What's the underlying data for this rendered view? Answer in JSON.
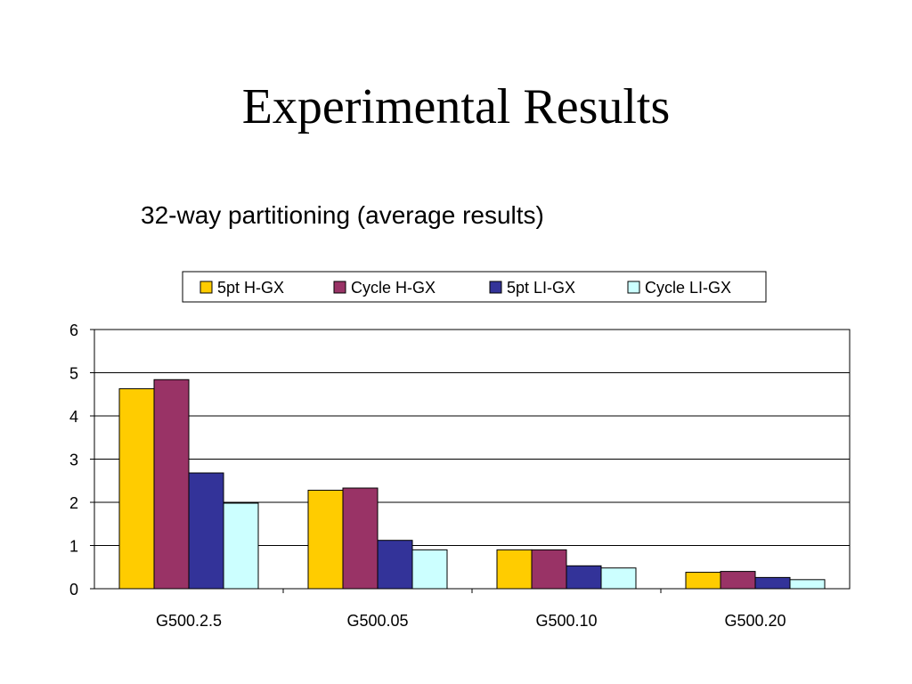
{
  "slide": {
    "title": "Experimental Results",
    "subtitle": "32-way partitioning (average results)"
  },
  "chart_data": {
    "type": "bar",
    "title": "",
    "xlabel": "",
    "ylabel": "",
    "categories": [
      "G500.2.5",
      "G500.05",
      "G500.10",
      "G500.20"
    ],
    "series": [
      {
        "name": "5pt H-GX",
        "color": "#FFCC00",
        "values": [
          4.63,
          2.28,
          0.9,
          0.38
        ]
      },
      {
        "name": "Cycle H-GX",
        "color": "#993366",
        "values": [
          4.84,
          2.33,
          0.9,
          0.4
        ]
      },
      {
        "name": "5pt LI-GX",
        "color": "#333399",
        "values": [
          2.68,
          1.12,
          0.53,
          0.26
        ]
      },
      {
        "name": "Cycle LI-GX",
        "color": "#CCFFFF",
        "values": [
          1.98,
          0.9,
          0.48,
          0.21
        ]
      }
    ],
    "ylim": [
      0,
      6
    ],
    "yticks": [
      0,
      1,
      2,
      3,
      4,
      5,
      6
    ],
    "grid": true,
    "legend_position": "top"
  }
}
